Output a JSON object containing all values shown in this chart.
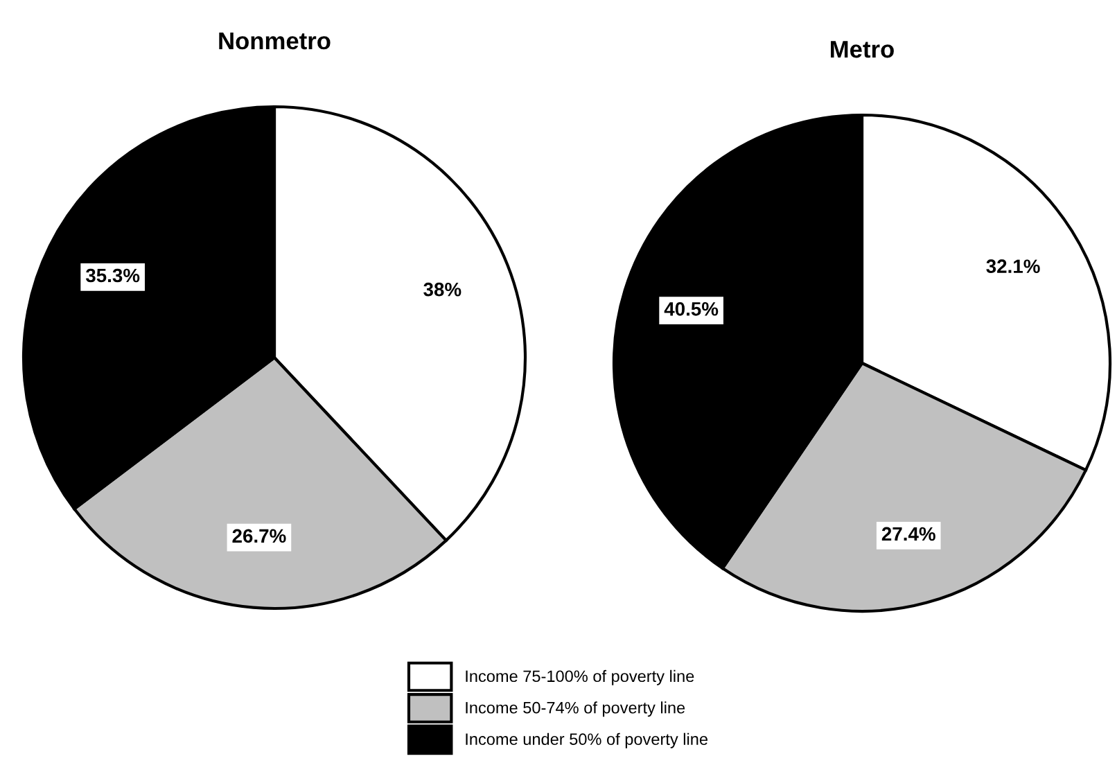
{
  "chart_data": [
    {
      "type": "pie",
      "title": "Nonmetro",
      "categories": [
        "Income 75-100% of poverty line",
        "Income 50-74% of poverty line",
        "Income under 50% of poverty line"
      ],
      "values": [
        38,
        26.7,
        35.3
      ],
      "colors": [
        "#ffffff",
        "#c0c0c0",
        "#000000"
      ],
      "value_labels": [
        "38%",
        "26.7%",
        "35.3%"
      ],
      "legend": "bottom"
    },
    {
      "type": "pie",
      "title": "Metro",
      "values": [
        32.1,
        27.4,
        40.5
      ],
      "colors": [
        "#ffffff",
        "#c0c0c0",
        "#000000"
      ],
      "value_labels": [
        "32.1%",
        "27.4%",
        "40.5%"
      ]
    }
  ]
}
